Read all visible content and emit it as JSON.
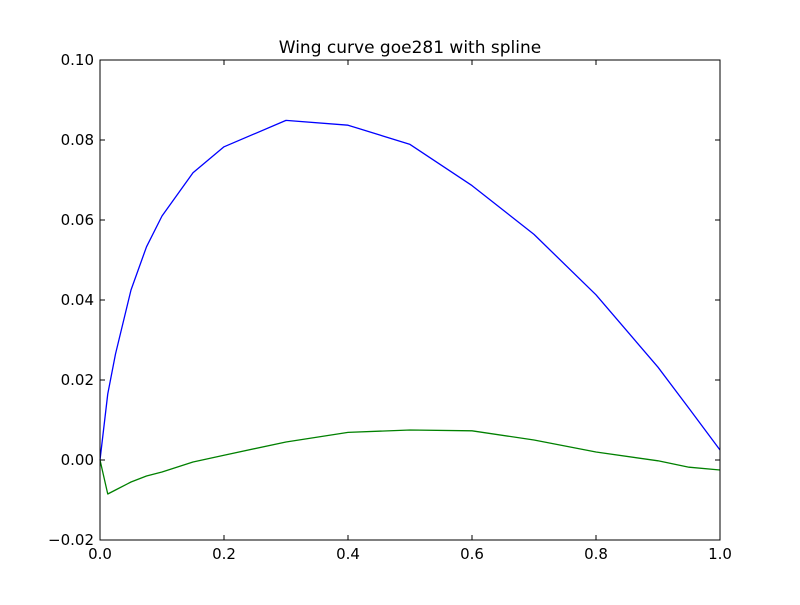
{
  "chart_data": {
    "type": "line",
    "title": "Wing curve goe281 with spline",
    "xlabel": "",
    "ylabel": "",
    "xlim": [
      0.0,
      1.0
    ],
    "ylim": [
      -0.02,
      0.1
    ],
    "x_ticks": [
      0.0,
      0.2,
      0.4,
      0.6,
      0.8,
      1.0
    ],
    "x_tick_labels": [
      "0.0",
      "0.2",
      "0.4",
      "0.6",
      "0.8",
      "1.0"
    ],
    "y_ticks": [
      -0.02,
      0.0,
      0.02,
      0.04,
      0.06,
      0.08,
      0.1
    ],
    "y_tick_labels": [
      "−0.02",
      "0.00",
      "0.02",
      "0.04",
      "0.06",
      "0.08",
      "0.10"
    ],
    "grid": false,
    "legend": "none",
    "series": [
      {
        "color": "#0000ff",
        "x": [
          0.0,
          0.0125,
          0.025,
          0.05,
          0.075,
          0.1,
          0.15,
          0.2,
          0.3,
          0.4,
          0.5,
          0.6,
          0.7,
          0.8,
          0.9,
          0.95,
          1.0
        ],
        "y": [
          0.0,
          0.0165,
          0.0265,
          0.0425,
          0.0533,
          0.061,
          0.0718,
          0.0783,
          0.0849,
          0.0837,
          0.0789,
          0.0686,
          0.0564,
          0.0413,
          0.0232,
          0.0129,
          0.0025
        ]
      },
      {
        "color": "#008000",
        "x": [
          0.0,
          0.0125,
          0.025,
          0.05,
          0.075,
          0.1,
          0.15,
          0.2,
          0.3,
          0.4,
          0.5,
          0.6,
          0.7,
          0.8,
          0.9,
          0.95,
          1.0
        ],
        "y": [
          0.0,
          -0.0085,
          -0.0075,
          -0.0055,
          -0.004,
          -0.003,
          -0.0005,
          0.0012,
          0.0045,
          0.0069,
          0.0075,
          0.0073,
          0.005,
          0.002,
          -0.0002,
          -0.0018,
          -0.0025
        ]
      }
    ]
  }
}
